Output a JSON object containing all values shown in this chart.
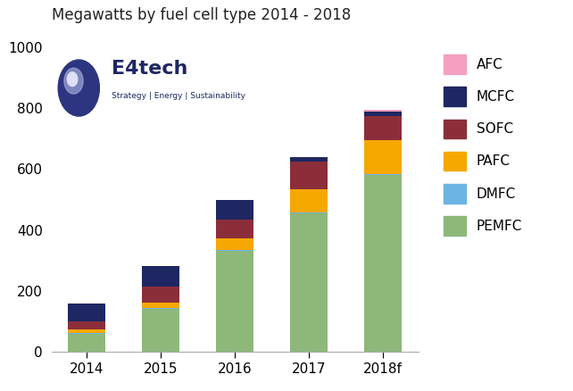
{
  "title": "Megawatts by fuel cell type 2014 - 2018",
  "categories": [
    "2014",
    "2015",
    "2016",
    "2017",
    "2018f"
  ],
  "series": {
    "PEMFC": [
      60,
      140,
      330,
      455,
      580
    ],
    "DMFC": [
      3,
      3,
      3,
      3,
      3
    ],
    "PAFC": [
      12,
      20,
      40,
      75,
      110
    ],
    "SOFC": [
      25,
      50,
      60,
      90,
      80
    ],
    "MCFC": [
      60,
      70,
      65,
      15,
      15
    ],
    "AFC": [
      0,
      0,
      0,
      0,
      5
    ]
  },
  "colors": {
    "PEMFC": "#8db87a",
    "DMFC": "#6cb4e4",
    "PAFC": "#f5a800",
    "SOFC": "#8b2e3a",
    "MCFC": "#1e2761",
    "AFC": "#f5a0c0"
  },
  "legend_order": [
    "AFC",
    "MCFC",
    "SOFC",
    "PAFC",
    "DMFC",
    "PEMFC"
  ],
  "ylim": [
    0,
    1000
  ],
  "yticks": [
    0,
    200,
    400,
    600,
    800,
    1000
  ],
  "background_color": "#ffffff",
  "title_fontsize": 12,
  "tick_fontsize": 11,
  "legend_fontsize": 11,
  "bar_width": 0.5,
  "logo_text": "E4tech",
  "logo_sub": "Strategy | Energy | Sustainability",
  "logo_color": "#1e2761",
  "logo_sub_color": "#1e2761"
}
